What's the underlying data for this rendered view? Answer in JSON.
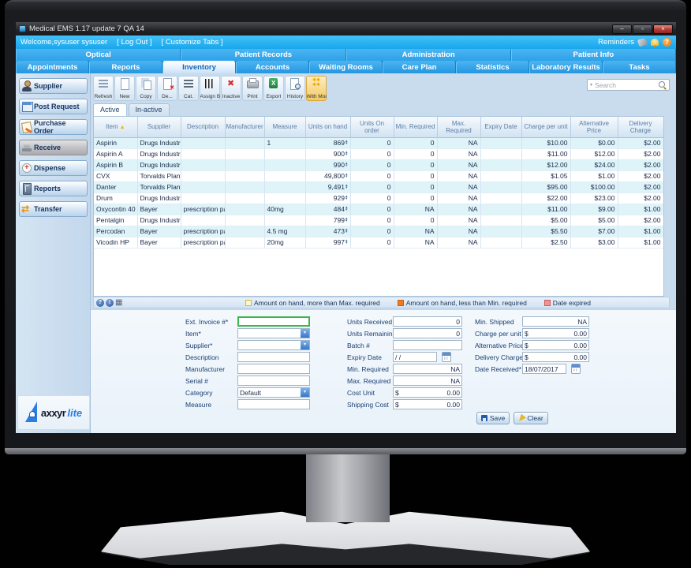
{
  "window": {
    "title": "Medical EMS 1.17 update 7 QA 14"
  },
  "topbar": {
    "welcome": "Welcome,sysuser sysuser",
    "logout": "[ Log Out ]",
    "customize_tabs": "[ Customize Tabs ]",
    "reminders": "Reminders"
  },
  "module_tabs": [
    {
      "label": "Optical"
    },
    {
      "label": "Patient Records"
    },
    {
      "label": "Administration"
    },
    {
      "label": "Patient Info"
    }
  ],
  "section_tabs": [
    {
      "label": "Appointments",
      "active": false
    },
    {
      "label": "Reports",
      "active": false
    },
    {
      "label": "Inventory",
      "active": true
    },
    {
      "label": "Accounts",
      "active": false
    },
    {
      "label": "Waiting Rooms",
      "active": false
    },
    {
      "label": "Care Plan",
      "active": false
    },
    {
      "label": "Statistics",
      "active": false
    },
    {
      "label": "Laboratory Results",
      "active": false
    },
    {
      "label": "Tasks",
      "active": false
    }
  ],
  "sidebar": {
    "items": [
      {
        "label": "Supplier",
        "icon": "person-icon",
        "active": false
      },
      {
        "label": "Post Request",
        "icon": "post-request-icon",
        "active": false
      },
      {
        "label": "Purchase Order",
        "icon": "purchase-order-icon",
        "active": false
      },
      {
        "label": "Receive",
        "icon": "receive-icon",
        "active": true
      },
      {
        "label": "Dispense",
        "icon": "dispense-icon",
        "active": false
      },
      {
        "label": "Reports",
        "icon": "reports-icon",
        "active": false
      },
      {
        "label": "Transfer",
        "icon": "transfer-icon",
        "active": false
      }
    ],
    "logo": {
      "name": "axxyr",
      "suffix": "lite"
    }
  },
  "toolbar": {
    "buttons": [
      {
        "label": "Refresh",
        "icon": "refresh-icon",
        "active": false
      },
      {
        "label": "New",
        "icon": "new-icon",
        "active": false
      },
      {
        "label": "Copy",
        "icon": "copy-icon",
        "active": false
      },
      {
        "label": "De...",
        "icon": "delete-icon",
        "active": false
      },
      {
        "label": "Cat.",
        "icon": "category-icon",
        "active": false
      },
      {
        "label": "Assign B...",
        "icon": "barcode-icon",
        "active": false
      },
      {
        "label": "Inactive",
        "icon": "inactive-icon",
        "active": false
      },
      {
        "label": "Print",
        "icon": "print-icon",
        "active": false
      },
      {
        "label": "Export",
        "icon": "export-icon",
        "active": false
      },
      {
        "label": "History",
        "icon": "history-icon",
        "active": false
      },
      {
        "label": "With Mode",
        "icon": "with-mode-icon",
        "active": true
      }
    ],
    "search_placeholder": "Search"
  },
  "view_tabs": [
    {
      "label": "Active",
      "active": true
    },
    {
      "label": "In-active",
      "active": false
    }
  ],
  "table": {
    "sort": {
      "column": "Item",
      "direction": "asc"
    },
    "columns": [
      "Item",
      "Supplier",
      "Description",
      "Manufacturer",
      "Measure",
      "Units on hand",
      "Units On order",
      "Min. Required",
      "Max. Required",
      "Expiry Date",
      "Charge per unit",
      "Alternative Price",
      "Delivery Charge"
    ],
    "rows": [
      [
        "Aspirin",
        "Drugs Industrials",
        "",
        "",
        "1",
        "869",
        "0",
        "0",
        "NA",
        "",
        "$10.00",
        "$0.00",
        "$2.00"
      ],
      [
        "Aspirin A",
        "Drugs Industrials",
        "",
        "",
        "",
        "900",
        "0",
        "0",
        "NA",
        "",
        "$11.00",
        "$12.00",
        "$2.00"
      ],
      [
        "Aspirin B",
        "Drugs Industrials",
        "",
        "",
        "",
        "990",
        "0",
        "0",
        "NA",
        "",
        "$12.00",
        "$24.00",
        "$2.00"
      ],
      [
        "CVX",
        "Torvalds Plant",
        "",
        "",
        "",
        "49,800",
        "0",
        "0",
        "NA",
        "",
        "$1.05",
        "$1.00",
        "$2.00"
      ],
      [
        "Danter",
        "Torvalds Plant",
        "",
        "",
        "",
        "9,491",
        "0",
        "0",
        "NA",
        "",
        "$95.00",
        "$100.00",
        "$2.00"
      ],
      [
        "Drum",
        "Drugs Industrials",
        "",
        "",
        "",
        "929",
        "0",
        "0",
        "NA",
        "",
        "$22.00",
        "$23.00",
        "$2.00"
      ],
      [
        "Oxycontin 40",
        "Bayer",
        "prescription pain ki...",
        "",
        "40mg",
        "484",
        "0",
        "NA",
        "NA",
        "",
        "$11.00",
        "$9.00",
        "$1.00"
      ],
      [
        "Pentalgin",
        "Drugs Industrials",
        "",
        "",
        "",
        "799",
        "0",
        "0",
        "NA",
        "",
        "$5.00",
        "$5.00",
        "$2.00"
      ],
      [
        "Percodan",
        "Bayer",
        "prescription pain ki...",
        "",
        "4.5 mg",
        "473",
        "0",
        "NA",
        "NA",
        "",
        "$5.50",
        "$7.00",
        "$1.00"
      ],
      [
        "Vicodin HP",
        "Bayer",
        "prescription pain ki...",
        "",
        "20mg",
        "997",
        "0",
        "NA",
        "NA",
        "",
        "$2.50",
        "$3.00",
        "$1.00"
      ]
    ]
  },
  "legend": [
    {
      "label": "Amount on hand, more than Max. required",
      "color": "#fdf6c8",
      "border": "#c8b84e"
    },
    {
      "label": "Amount on hand, less than Min. required",
      "color": "#f07a1d",
      "border": "#c85f10"
    },
    {
      "label": "Date expired",
      "color": "#f49292",
      "border": "#cc5a5a"
    }
  ],
  "form": {
    "col1": [
      {
        "label": "Ext. Invoice #*",
        "type": "text",
        "value": "",
        "focused": true
      },
      {
        "label": "Item*",
        "type": "select",
        "value": ""
      },
      {
        "label": "Supplier*",
        "type": "select",
        "value": ""
      },
      {
        "label": "Description",
        "type": "text",
        "value": ""
      },
      {
        "label": "Manufacturer",
        "type": "text",
        "value": ""
      },
      {
        "label": "Serial #",
        "type": "text",
        "value": ""
      },
      {
        "label": "Category",
        "type": "select",
        "value": "Default"
      },
      {
        "label": "Measure",
        "type": "text",
        "value": ""
      }
    ],
    "col2": [
      {
        "label": "Units Received",
        "type": "num",
        "value": "0"
      },
      {
        "label": "Units Remaining",
        "type": "num",
        "value": "0"
      },
      {
        "label": "Batch #",
        "type": "text",
        "value": ""
      },
      {
        "label": "Expiry Date",
        "type": "date",
        "value": "/ /"
      },
      {
        "label": "Min. Required",
        "type": "num",
        "value": "NA"
      },
      {
        "label": "Max. Required",
        "type": "num",
        "value": "NA"
      },
      {
        "label": "Cost Unit",
        "type": "money",
        "value": "0.00"
      },
      {
        "label": "Shipping Cost",
        "type": "money",
        "value": "0.00"
      }
    ],
    "col3": [
      {
        "label": "Min. Shipped",
        "type": "num",
        "value": "NA"
      },
      {
        "label": "Charge per unit",
        "type": "money",
        "value": "0.00"
      },
      {
        "label": "Alternative Price",
        "type": "money",
        "value": "0.00"
      },
      {
        "label": "Delivery Charge",
        "type": "money",
        "value": "0.00"
      },
      {
        "label": "Date Received*",
        "type": "date",
        "value": "18/07/2017"
      }
    ],
    "save_label": "Save",
    "clear_label": "Clear"
  }
}
